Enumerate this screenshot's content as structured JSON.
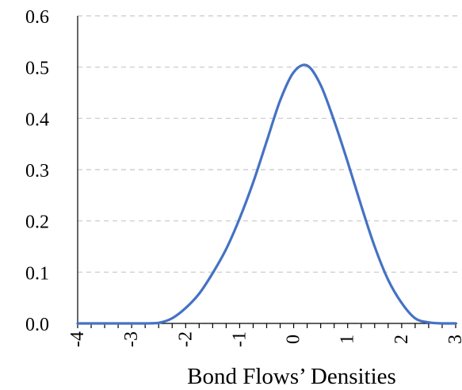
{
  "chart_data": {
    "type": "line",
    "title": "",
    "xlabel": "Bond Flows’ Densities",
    "ylabel": "",
    "xlim": [
      -4,
      3
    ],
    "ylim": [
      0,
      0.6
    ],
    "x_ticks": [
      "-4",
      "-3",
      "-2",
      "-1",
      "0",
      "1",
      "2",
      "3"
    ],
    "y_ticks": [
      "0.0",
      "0.1",
      "0.2",
      "0.3",
      "0.4",
      "0.5",
      "0.6"
    ],
    "grid": "horizontal dashed",
    "legend": "none",
    "series": [
      {
        "color": "#4472C4",
        "x": [
          -4,
          -3.75,
          -3.5,
          -3.25,
          -3,
          -2.75,
          -2.5,
          -2.25,
          -2,
          -1.75,
          -1.5,
          -1.25,
          -1,
          -0.75,
          -0.5,
          -0.25,
          0,
          0.25,
          0.5,
          0.75,
          1,
          1.25,
          1.5,
          1.75,
          2,
          2.25,
          2.5,
          2.75,
          3
        ],
        "y": [
          0,
          0,
          0,
          0,
          0,
          0,
          0.001,
          0.01,
          0.03,
          0.058,
          0.098,
          0.145,
          0.205,
          0.275,
          0.355,
          0.435,
          0.49,
          0.503,
          0.465,
          0.395,
          0.315,
          0.23,
          0.15,
          0.085,
          0.04,
          0.01,
          0.002,
          0,
          0
        ]
      }
    ]
  }
}
